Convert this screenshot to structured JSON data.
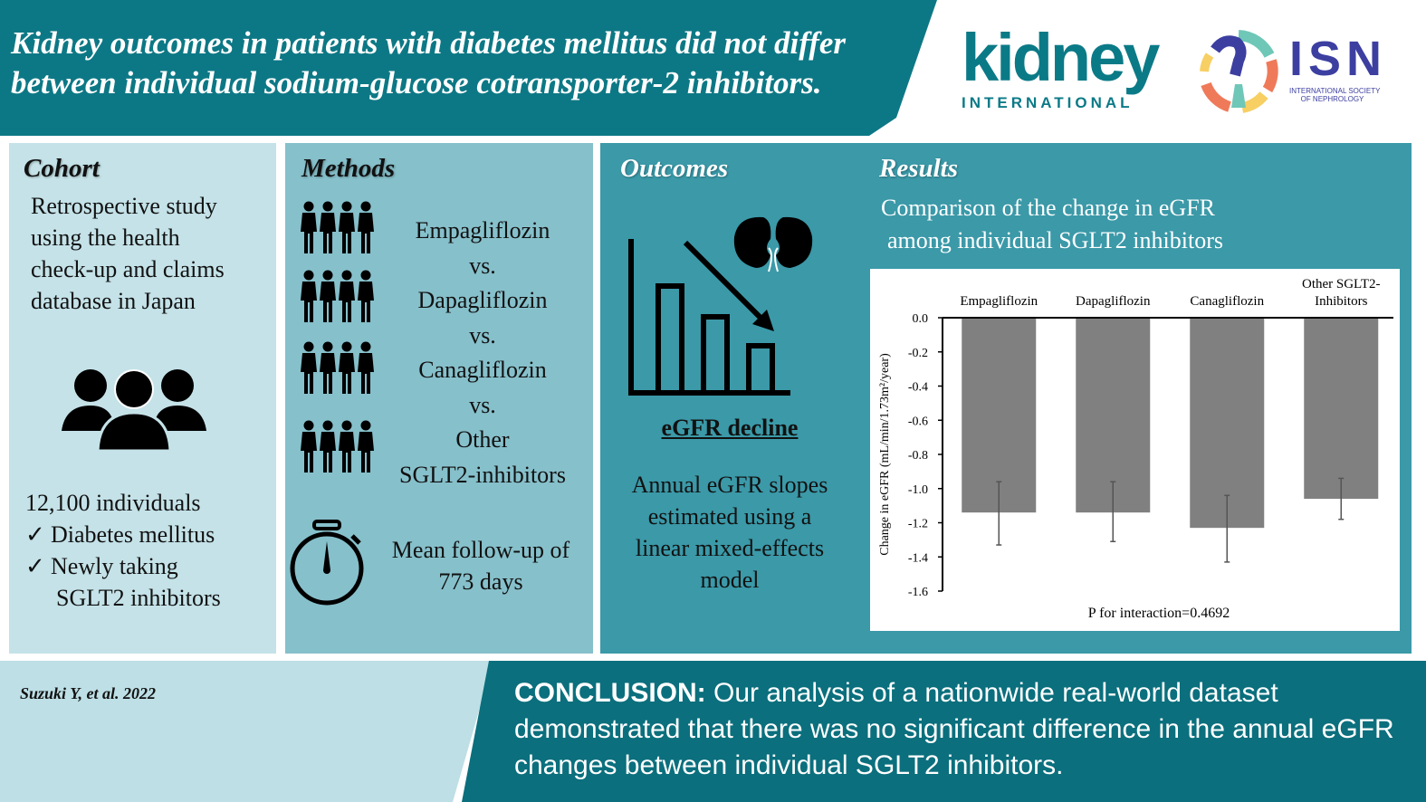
{
  "header": {
    "title": "Kidney outcomes in patients with diabetes mellitus did not differ between individual sodium-glucose cotransporter-2 inhibitors."
  },
  "logos": {
    "kidney_main": "kidney",
    "kidney_sub": "INTERNATIONAL",
    "isn_main": "ISN",
    "isn_sub1": "INTERNATIONAL SOCIETY",
    "isn_sub2": "OF NEPHROLOGY"
  },
  "cohort": {
    "heading": "Cohort",
    "description": [
      "Retrospective study",
      "using the health",
      "check-up and claims",
      "database in Japan"
    ],
    "count": "12,100 individuals",
    "criteria": [
      "Diabetes mellitus",
      "Newly taking",
      "SGLT2 inhibitors"
    ],
    "check": "✓"
  },
  "methods": {
    "heading": "Methods",
    "drugs": [
      "Empagliflozin",
      "Dapagliflozin",
      "Canagliflozin",
      "Other",
      "SGLT2-inhibitors"
    ],
    "vs": "vs.",
    "followup": [
      "Mean follow-up of",
      "773 days"
    ]
  },
  "outcomes": {
    "heading": "Outcomes",
    "label": "eGFR decline",
    "description": [
      "Annual eGFR slopes",
      "estimated using a",
      "linear mixed-effects",
      "model"
    ]
  },
  "results": {
    "heading": "Results",
    "subtitle": [
      "Comparison of the change in eGFR",
      "among individual SGLT2 inhibitors"
    ]
  },
  "chart_data": {
    "type": "bar",
    "categories": [
      "Empagliflozin",
      "Dapagliflozin",
      "Canagliflozin",
      "Other SGLT2-Inhibitors"
    ],
    "category_lines": [
      [
        "Empagliflozin"
      ],
      [
        "Dapagliflozin"
      ],
      [
        "Canagliflozin"
      ],
      [
        "Other SGLT2-",
        "Inhibitors"
      ]
    ],
    "values": [
      -1.14,
      -1.14,
      -1.23,
      -1.06
    ],
    "error_low": [
      -1.33,
      -1.31,
      -1.43,
      -1.18
    ],
    "error_high": [
      -0.96,
      -0.96,
      -1.04,
      -0.94
    ],
    "ylabel": "Change in eGFR (mL/min/1.73m²/year)",
    "ylim": [
      -1.6,
      0
    ],
    "yticks": [
      "0.0",
      "-0.2",
      "-0.4",
      "-0.6",
      "-0.8",
      "-1.0",
      "-1.2",
      "-1.4",
      "-1.6"
    ],
    "annotation": "P for interaction=0.4692",
    "bar_color": "#808080"
  },
  "footer": {
    "citation": "Suzuki Y, et al. 2022",
    "conclusion_label": "CONCLUSION:",
    "conclusion": " Our analysis of a nationwide real-world dataset demonstrated that there was no significant difference in the annual eGFR changes between individual SGLT2 inhibitors."
  }
}
